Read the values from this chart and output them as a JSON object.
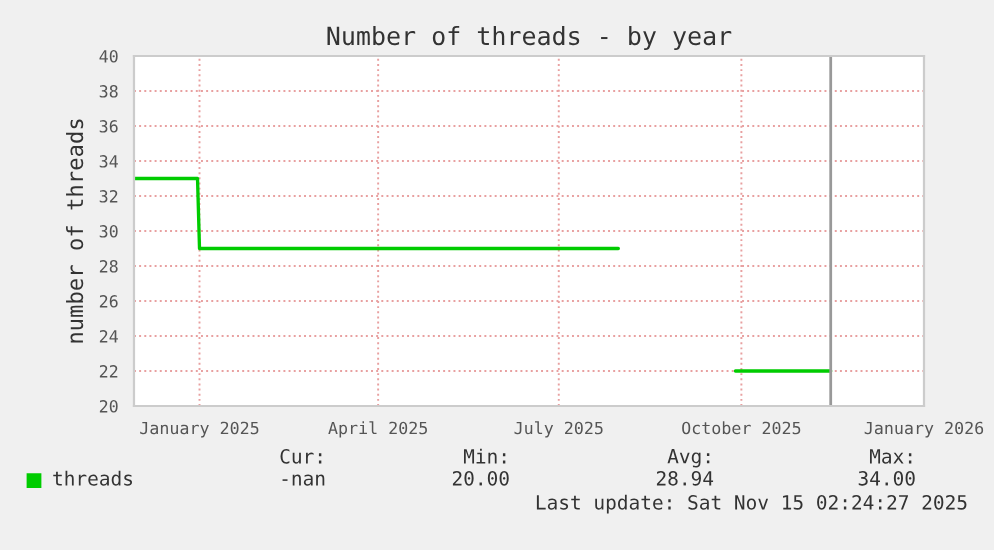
{
  "chart_data": {
    "type": "line",
    "title": "Number of threads - by year",
    "ylabel": "number of threads",
    "x": [
      "2024-11-29",
      "2024-12-31",
      "2025-01-01",
      "2025-07-31",
      "2025-08-15",
      "2025-09-28",
      "2025-11-15"
    ],
    "series": [
      {
        "name": "threads",
        "color": "#00cc00",
        "values": [
          33,
          33,
          29,
          29,
          null,
          22,
          22
        ]
      }
    ],
    "xlim": [
      "2024-11-29",
      "2026-01-01"
    ],
    "xticks": [
      {
        "value": "2025-01-01",
        "label": "January 2025"
      },
      {
        "value": "2025-04-01",
        "label": "April 2025"
      },
      {
        "value": "2025-07-01",
        "label": "July 2025"
      },
      {
        "value": "2025-10-01",
        "label": "October 2025"
      },
      {
        "value": "2026-01-01",
        "label": "January 2026"
      }
    ],
    "ylim": [
      20,
      40
    ],
    "yticks": [
      20,
      22,
      24,
      26,
      28,
      30,
      32,
      34,
      36,
      38,
      40
    ],
    "ref_lines": [
      {
        "axis": "x",
        "value": "2025-11-15",
        "color": "#999999"
      }
    ],
    "grid": true,
    "legend": "bottom",
    "annotations": [
      "Cur:",
      "Min:",
      "Avg:",
      "Max:",
      "-nan",
      "20.00",
      "28.94",
      "34.00",
      "Last update: Sat Nov 15 02:24:27 2025"
    ]
  }
}
